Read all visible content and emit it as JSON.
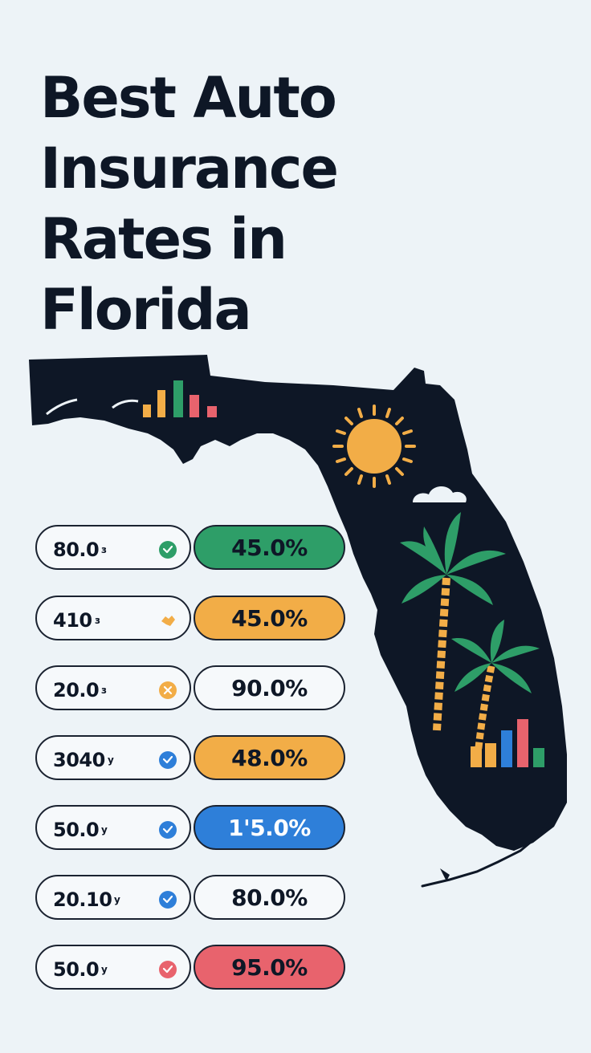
{
  "title": {
    "line1": "Best Auto",
    "line2": "Insurance",
    "line3": "Rates in",
    "line4": "Florida"
  },
  "colors": {
    "background": "#edf3f7",
    "ink": "#0e1726",
    "green": "#2e9e68",
    "orange": "#f2ad47",
    "blue": "#2e7fd9",
    "red": "#e8636d",
    "sun": "#f2ad47",
    "palm": "#2e9e68"
  },
  "rows": [
    {
      "left": "80.0",
      "suffix": "з",
      "icon": "check-circle-icon",
      "icon_color": "#2e9e68",
      "right": "45.0%",
      "pill_color": "#2e9e68"
    },
    {
      "left": "410",
      "suffix": "з",
      "icon": "handshake-icon",
      "icon_color": "#f2ad47",
      "right": "45.0%",
      "pill_color": "#f2ad47"
    },
    {
      "left": "20.0",
      "suffix": "з",
      "icon": "orange-x-icon",
      "icon_color": "#f2ad47",
      "right": "90.0%",
      "pill_color": ""
    },
    {
      "left": "3040",
      "suffix": "y",
      "icon": "check-circle-icon",
      "icon_color": "#2e7fd9",
      "right": "48.0%",
      "pill_color": "#f2ad47"
    },
    {
      "left": "50.0",
      "suffix": "y",
      "icon": "check-circle-icon",
      "icon_color": "#2e7fd9",
      "right": "1'5.0%",
      "pill_color": "#2e7fd9"
    },
    {
      "left": "20.10",
      "suffix": "y",
      "icon": "check-circle-icon",
      "icon_color": "#2e7fd9",
      "right": "80.0%",
      "pill_color": ""
    },
    {
      "left": "50.0",
      "suffix": "y",
      "icon": "check-circle-icon",
      "icon_color": "#e8636d",
      "right": "95.0%",
      "pill_color": "#e8636d"
    }
  ]
}
